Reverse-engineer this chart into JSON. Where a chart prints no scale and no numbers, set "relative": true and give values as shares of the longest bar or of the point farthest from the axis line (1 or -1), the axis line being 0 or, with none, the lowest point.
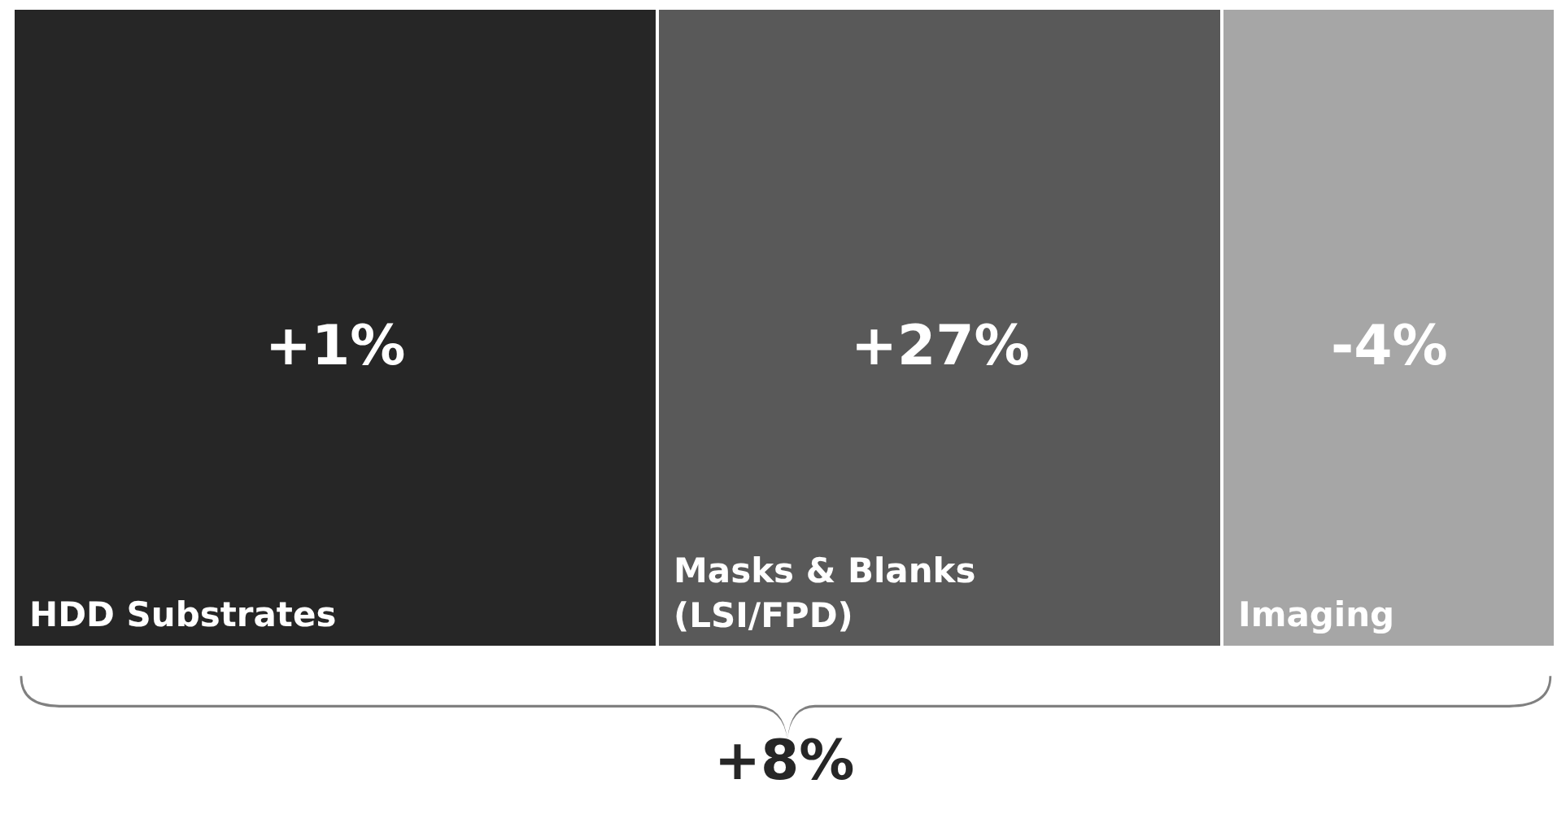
{
  "chart_data": {
    "type": "bar",
    "orientation": "horizontal",
    "stacked": true,
    "relative": true,
    "categories": [
      null
    ],
    "series": [
      {
        "name": "HDD Substrates",
        "color": "#262626",
        "values": [
          0.418
        ]
      },
      {
        "name": "Masks & Blanks\n(LSI/FPD)",
        "color": "#595959",
        "values": [
          0.366
        ]
      },
      {
        "name": "Imaging",
        "color": "#a6a6a6",
        "values": [
          0.216
        ]
      }
    ],
    "annotations": [
      "+1%",
      "+27%",
      "-4%",
      "+8%"
    ]
  }
}
